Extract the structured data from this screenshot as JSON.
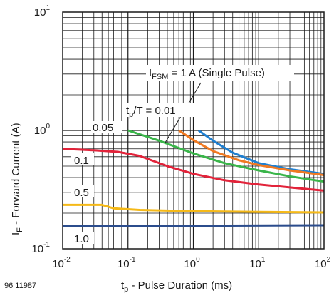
{
  "chart_data": {
    "type": "line",
    "xscale": "log",
    "yscale": "log",
    "xlim": [
      0.01,
      100
    ],
    "ylim": [
      0.1,
      10
    ],
    "grid": true,
    "xticks": [
      {
        "base": "10",
        "exp": "-2"
      },
      {
        "base": "10",
        "exp": "-1"
      },
      {
        "base": "10",
        "exp": "0"
      },
      {
        "base": "10",
        "exp": "1"
      },
      {
        "base": "10",
        "exp": "2"
      }
    ],
    "yticks": [
      {
        "base": "10",
        "exp": "-1"
      },
      {
        "base": "10",
        "exp": "0"
      },
      {
        "base": "10",
        "exp": "1"
      }
    ],
    "xlabel": {
      "main": "t",
      "sub": "p",
      "rest": " - Pulse Duration (ms)"
    },
    "ylabel": {
      "main": "I",
      "sub": "F",
      "rest": " - Forward Current (A)"
    },
    "doc_number": "96 11987",
    "annotations": {
      "ifsm": {
        "main": "I",
        "sub": "FSM",
        "rest": " = 1 A (Single Pulse)"
      },
      "duty_title": {
        "main": "t",
        "sub": "p",
        "rest": "/T = 0.01"
      }
    },
    "series": [
      {
        "label": "",
        "color": "#1f7fd0",
        "x": [
          1.2,
          2,
          4,
          10,
          30,
          100
        ],
        "y": [
          1.0,
          0.82,
          0.65,
          0.53,
          0.47,
          0.43
        ]
      },
      {
        "label": "",
        "color": "#f07a22",
        "x": [
          0.6,
          1,
          2,
          5,
          10,
          30,
          100
        ],
        "y": [
          1.0,
          0.83,
          0.67,
          0.56,
          0.51,
          0.46,
          0.42
        ]
      },
      {
        "label": "0.05",
        "color": "#3ab54a",
        "x": [
          0.1,
          0.3,
          1,
          3,
          10,
          30,
          100
        ],
        "y": [
          1.0,
          0.82,
          0.64,
          0.53,
          0.46,
          0.41,
          0.37
        ]
      },
      {
        "label": "0.1",
        "color": "#e2233a",
        "x": [
          0.01,
          0.03,
          0.07,
          0.15,
          0.4,
          1,
          3,
          10,
          30,
          100
        ],
        "y": [
          0.7,
          0.68,
          0.66,
          0.61,
          0.5,
          0.43,
          0.38,
          0.35,
          0.33,
          0.31
        ]
      },
      {
        "label": "0.5",
        "color": "#f5b918",
        "x": [
          0.01,
          0.04,
          0.06,
          0.15,
          1,
          10,
          100
        ],
        "y": [
          0.235,
          0.235,
          0.22,
          0.213,
          0.208,
          0.205,
          0.203
        ]
      },
      {
        "label": "1.0",
        "color": "#2b4c8c",
        "x": [
          0.01,
          100
        ],
        "y": [
          0.155,
          0.158
        ]
      }
    ]
  }
}
